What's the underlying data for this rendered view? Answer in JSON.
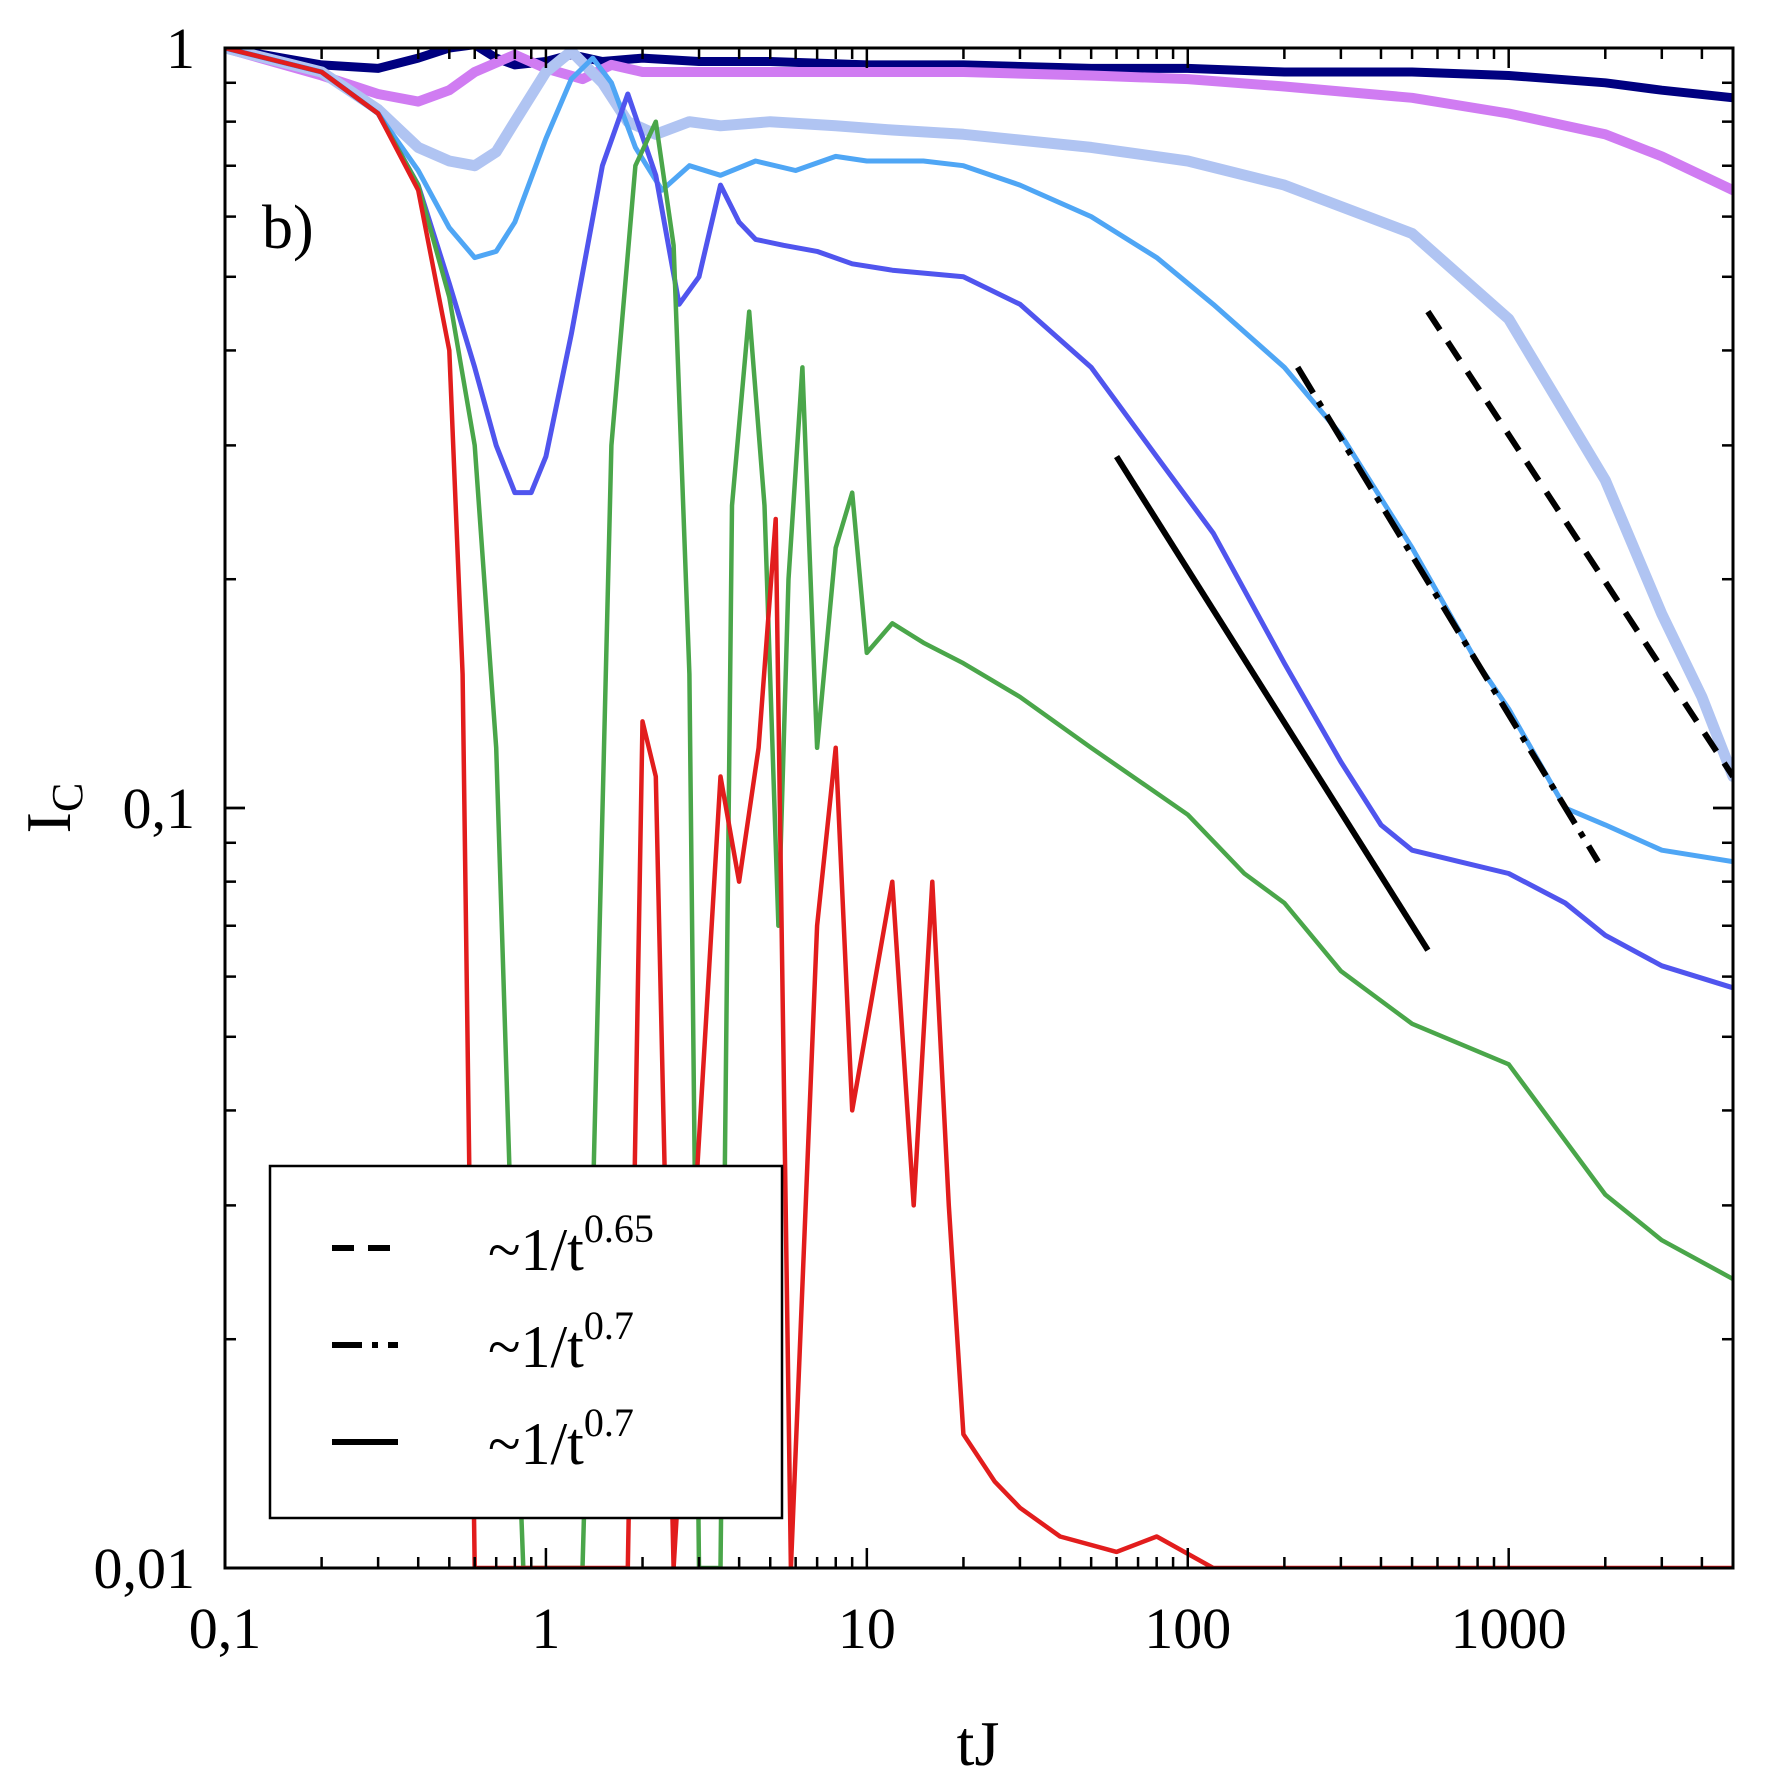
{
  "chart_data": {
    "type": "line",
    "panel_label": "b)",
    "xlabel": "tJ",
    "ylabel_main": "I",
    "ylabel_sub": "C",
    "xscale": "log",
    "yscale": "log",
    "xlim": [
      0.1,
      5000
    ],
    "ylim": [
      0.01,
      1.0
    ],
    "x_ticks": [
      {
        "value": 0.1,
        "label": "0,1"
      },
      {
        "value": 1,
        "label": "1"
      },
      {
        "value": 10,
        "label": "10"
      },
      {
        "value": 100,
        "label": "100"
      },
      {
        "value": 1000,
        "label": "1000"
      }
    ],
    "y_ticks": [
      {
        "value": 0.01,
        "label": "0,01"
      },
      {
        "value": 0.1,
        "label": "0,1"
      },
      {
        "value": 1,
        "label": "1"
      }
    ],
    "grid": false,
    "legend_position": "bottom-left",
    "series": [
      {
        "color": "#000080",
        "width": 9,
        "points": [
          [
            0.1,
            1.0
          ],
          [
            0.2,
            0.95
          ],
          [
            0.3,
            0.94
          ],
          [
            0.4,
            0.97
          ],
          [
            0.5,
            1.0
          ],
          [
            0.6,
            1.01
          ],
          [
            0.7,
            0.97
          ],
          [
            0.8,
            0.95
          ],
          [
            1.0,
            0.96
          ],
          [
            1.2,
            0.98
          ],
          [
            1.5,
            0.96
          ],
          [
            2,
            0.97
          ],
          [
            3,
            0.96
          ],
          [
            5,
            0.96
          ],
          [
            10,
            0.95
          ],
          [
            20,
            0.95
          ],
          [
            50,
            0.94
          ],
          [
            100,
            0.94
          ],
          [
            200,
            0.93
          ],
          [
            500,
            0.93
          ],
          [
            1000,
            0.92
          ],
          [
            2000,
            0.9
          ],
          [
            3000,
            0.88
          ],
          [
            5000,
            0.86
          ]
        ]
      },
      {
        "color": "#d07cf2",
        "width": 10,
        "points": [
          [
            0.1,
            1.0
          ],
          [
            0.2,
            0.92
          ],
          [
            0.3,
            0.87
          ],
          [
            0.4,
            0.85
          ],
          [
            0.5,
            0.88
          ],
          [
            0.6,
            0.93
          ],
          [
            0.8,
            0.98
          ],
          [
            1.0,
            0.94
          ],
          [
            1.3,
            0.91
          ],
          [
            1.6,
            0.95
          ],
          [
            2,
            0.93
          ],
          [
            3,
            0.93
          ],
          [
            5,
            0.93
          ],
          [
            10,
            0.93
          ],
          [
            20,
            0.93
          ],
          [
            50,
            0.92
          ],
          [
            100,
            0.91
          ],
          [
            200,
            0.89
          ],
          [
            500,
            0.86
          ],
          [
            1000,
            0.82
          ],
          [
            2000,
            0.77
          ],
          [
            3000,
            0.72
          ],
          [
            5000,
            0.65
          ]
        ]
      },
      {
        "color": "#b0c4f2",
        "width": 11,
        "points": [
          [
            0.1,
            1.0
          ],
          [
            0.2,
            0.93
          ],
          [
            0.3,
            0.83
          ],
          [
            0.4,
            0.74
          ],
          [
            0.5,
            0.71
          ],
          [
            0.6,
            0.7
          ],
          [
            0.7,
            0.73
          ],
          [
            0.8,
            0.8
          ],
          [
            1.0,
            0.93
          ],
          [
            1.2,
            0.99
          ],
          [
            1.5,
            0.9
          ],
          [
            1.8,
            0.8
          ],
          [
            2.2,
            0.77
          ],
          [
            2.8,
            0.8
          ],
          [
            3.5,
            0.79
          ],
          [
            5,
            0.8
          ],
          [
            8,
            0.79
          ],
          [
            12,
            0.78
          ],
          [
            20,
            0.77
          ],
          [
            50,
            0.74
          ],
          [
            100,
            0.71
          ],
          [
            200,
            0.66
          ],
          [
            500,
            0.57
          ],
          [
            1000,
            0.44
          ],
          [
            2000,
            0.27
          ],
          [
            3000,
            0.18
          ],
          [
            4000,
            0.14
          ],
          [
            5000,
            0.11
          ]
        ]
      },
      {
        "color": "#4fa6f5",
        "width": 5,
        "points": [
          [
            0.1,
            1.0
          ],
          [
            0.2,
            0.93
          ],
          [
            0.3,
            0.82
          ],
          [
            0.4,
            0.69
          ],
          [
            0.5,
            0.58
          ],
          [
            0.6,
            0.53
          ],
          [
            0.7,
            0.54
          ],
          [
            0.8,
            0.59
          ],
          [
            1.0,
            0.76
          ],
          [
            1.2,
            0.91
          ],
          [
            1.4,
            0.97
          ],
          [
            1.6,
            0.9
          ],
          [
            1.9,
            0.74
          ],
          [
            2.3,
            0.65
          ],
          [
            2.8,
            0.7
          ],
          [
            3.5,
            0.68
          ],
          [
            4.5,
            0.71
          ],
          [
            6,
            0.69
          ],
          [
            8,
            0.72
          ],
          [
            10,
            0.71
          ],
          [
            15,
            0.71
          ],
          [
            20,
            0.7
          ],
          [
            30,
            0.66
          ],
          [
            50,
            0.6
          ],
          [
            80,
            0.53
          ],
          [
            120,
            0.46
          ],
          [
            200,
            0.38
          ],
          [
            300,
            0.31
          ],
          [
            500,
            0.22
          ],
          [
            800,
            0.155
          ],
          [
            1000,
            0.135
          ],
          [
            1500,
            0.1
          ],
          [
            2000,
            0.095
          ],
          [
            3000,
            0.088
          ],
          [
            5000,
            0.085
          ]
        ]
      },
      {
        "color": "#5055ee",
        "width": 5,
        "points": [
          [
            0.1,
            1.0
          ],
          [
            0.2,
            0.93
          ],
          [
            0.3,
            0.82
          ],
          [
            0.4,
            0.66
          ],
          [
            0.5,
            0.49
          ],
          [
            0.6,
            0.38
          ],
          [
            0.7,
            0.3
          ],
          [
            0.8,
            0.26
          ],
          [
            0.9,
            0.26
          ],
          [
            1.0,
            0.29
          ],
          [
            1.2,
            0.42
          ],
          [
            1.5,
            0.7
          ],
          [
            1.8,
            0.87
          ],
          [
            2.2,
            0.68
          ],
          [
            2.6,
            0.46
          ],
          [
            3.0,
            0.5
          ],
          [
            3.5,
            0.66
          ],
          [
            4.0,
            0.59
          ],
          [
            4.5,
            0.56
          ],
          [
            5.5,
            0.55
          ],
          [
            7,
            0.54
          ],
          [
            9,
            0.52
          ],
          [
            12,
            0.51
          ],
          [
            20,
            0.5
          ],
          [
            30,
            0.46
          ],
          [
            50,
            0.38
          ],
          [
            80,
            0.29
          ],
          [
            120,
            0.23
          ],
          [
            200,
            0.155
          ],
          [
            300,
            0.115
          ],
          [
            400,
            0.095
          ],
          [
            500,
            0.088
          ],
          [
            700,
            0.085
          ],
          [
            1000,
            0.082
          ],
          [
            1500,
            0.075
          ],
          [
            2000,
            0.068
          ],
          [
            3000,
            0.062
          ],
          [
            5000,
            0.058
          ]
        ]
      },
      {
        "color": "#4aa64a",
        "width": 4.5,
        "points": [
          [
            0.1,
            1.0
          ],
          [
            0.2,
            0.93
          ],
          [
            0.3,
            0.82
          ],
          [
            0.4,
            0.66
          ],
          [
            0.5,
            0.47
          ],
          [
            0.6,
            0.3
          ],
          [
            0.7,
            0.12
          ],
          [
            0.8,
            0.02
          ],
          [
            0.85,
            0.01
          ],
          [
            1.3,
            0.01
          ],
          [
            1.4,
            0.03
          ],
          [
            1.6,
            0.3
          ],
          [
            1.9,
            0.7
          ],
          [
            2.2,
            0.8
          ],
          [
            2.5,
            0.55
          ],
          [
            2.8,
            0.15
          ],
          [
            3.0,
            0.01
          ],
          [
            3.5,
            0.01
          ],
          [
            3.8,
            0.25
          ],
          [
            4.3,
            0.45
          ],
          [
            4.8,
            0.25
          ],
          [
            5.3,
            0.07
          ],
          [
            5.7,
            0.2
          ],
          [
            6.3,
            0.38
          ],
          [
            7,
            0.12
          ],
          [
            8,
            0.22
          ],
          [
            9,
            0.26
          ],
          [
            10,
            0.16
          ],
          [
            12,
            0.175
          ],
          [
            15,
            0.165
          ],
          [
            20,
            0.155
          ],
          [
            30,
            0.14
          ],
          [
            50,
            0.12
          ],
          [
            100,
            0.098
          ],
          [
            150,
            0.082
          ],
          [
            200,
            0.075
          ],
          [
            300,
            0.061
          ],
          [
            500,
            0.052
          ],
          [
            1000,
            0.046
          ],
          [
            2000,
            0.031
          ],
          [
            3000,
            0.027
          ],
          [
            5000,
            0.024
          ]
        ]
      },
      {
        "color": "#e21d1d",
        "width": 4.5,
        "points": [
          [
            0.1,
            1.0
          ],
          [
            0.2,
            0.93
          ],
          [
            0.3,
            0.82
          ],
          [
            0.4,
            0.65
          ],
          [
            0.5,
            0.4
          ],
          [
            0.55,
            0.15
          ],
          [
            0.6,
            0.01
          ],
          [
            1.8,
            0.01
          ],
          [
            2.0,
            0.13
          ],
          [
            2.2,
            0.11
          ],
          [
            2.5,
            0.01
          ],
          [
            3.5,
            0.11
          ],
          [
            4.0,
            0.08
          ],
          [
            4.6,
            0.12
          ],
          [
            5.2,
            0.24
          ],
          [
            5.8,
            0.01
          ],
          [
            7,
            0.07
          ],
          [
            8,
            0.12
          ],
          [
            9,
            0.04
          ],
          [
            12,
            0.08
          ],
          [
            14,
            0.03
          ],
          [
            16,
            0.08
          ],
          [
            18,
            0.03
          ],
          [
            20,
            0.015
          ],
          [
            25,
            0.013
          ],
          [
            30,
            0.012
          ],
          [
            40,
            0.011
          ],
          [
            60,
            0.0105
          ],
          [
            80,
            0.011
          ],
          [
            120,
            0.01
          ],
          [
            5000,
            0.01
          ]
        ]
      }
    ],
    "fit_lines": [
      {
        "label": "~1/t^0.65",
        "style": "dashed",
        "x_start": 560,
        "x_end": 5000,
        "y_start": 0.45,
        "y_end": 0.11
      },
      {
        "label": "~1/t^0.7",
        "style": "dashdot",
        "x_start": 220,
        "x_end": 1900,
        "y_start": 0.38,
        "y_end": 0.085
      },
      {
        "label": "~1/t^0.7",
        "style": "solid",
        "x_start": 60,
        "x_end": 560,
        "y_start": 0.29,
        "y_end": 0.065
      }
    ],
    "legend": {
      "entries": [
        {
          "style": "dashed",
          "text_main": "~1/t",
          "text_exp": "0.65"
        },
        {
          "style": "dashdot",
          "text_main": "~1/t",
          "text_exp": "0.7"
        },
        {
          "style": "solid",
          "text_main": "~1/t",
          "text_exp": "0.7"
        }
      ]
    }
  }
}
